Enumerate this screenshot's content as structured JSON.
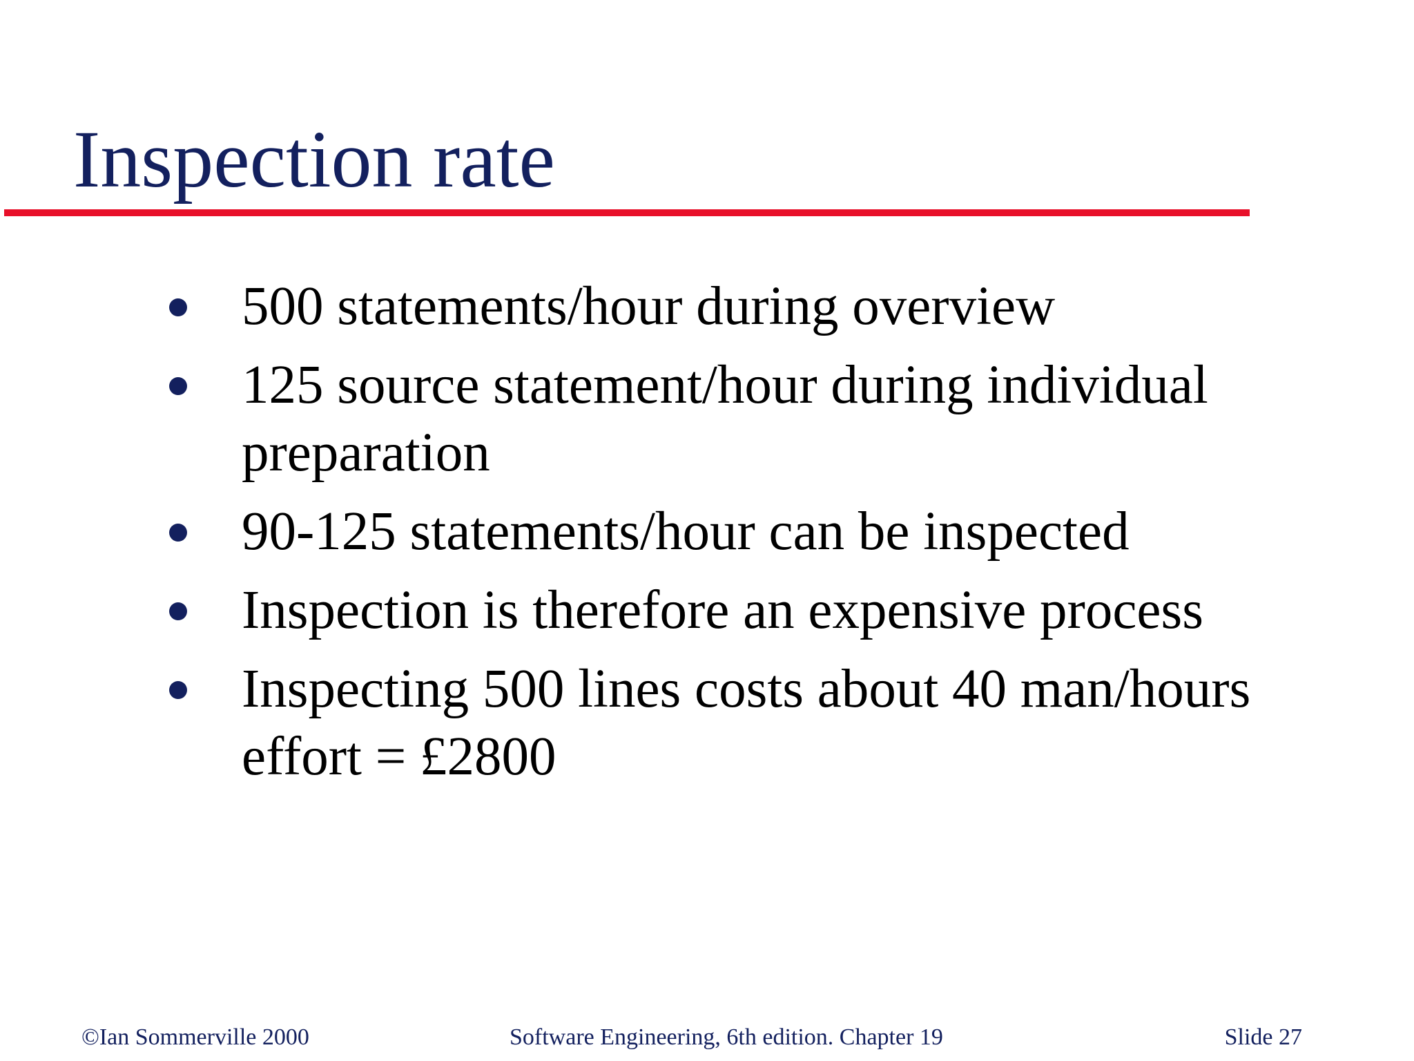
{
  "slide": {
    "title": "Inspection rate",
    "bullets": [
      "500 statements/hour during overview",
      "125 source statement/hour during individual preparation",
      "90-125 statements/hour can be inspected",
      "Inspection is therefore an expensive process",
      "Inspecting 500 lines costs about 40 man/hours effort = £2800"
    ]
  },
  "footer": {
    "copyright": "©Ian Sommerville 2000",
    "book": "Software Engineering, 6th edition. Chapter 19",
    "slide_number": "Slide 27"
  },
  "colors": {
    "title": "#13205e",
    "rule": "#e8102a",
    "body_text": "#000000",
    "background": "#ffffff"
  }
}
